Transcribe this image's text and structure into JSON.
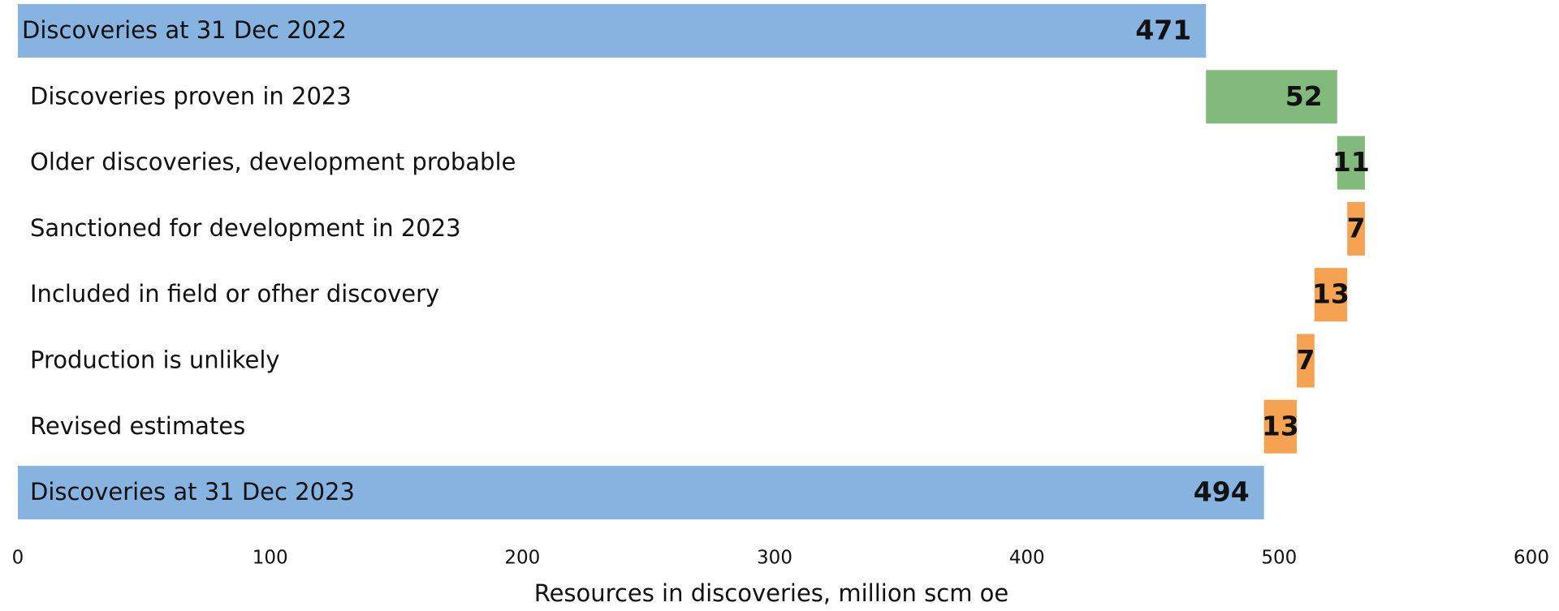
{
  "chart_data": {
    "type": "waterfall",
    "orientation": "horizontal",
    "x_axis_label": "Resources in discoveries, million scm oe",
    "categories": [
      "Discoveries at 31 Dec 2022",
      "Discoveries proven in 2023",
      "Older discoveries, development probable",
      "Sanctioned for development in 2023",
      "Included in field or ofher discovery",
      "Production is unlikely",
      "Revised estimates",
      "Discoveries at 31 Dec 2023"
    ],
    "values": [
      471,
      52,
      11,
      7,
      13,
      7,
      13,
      494
    ],
    "measure": [
      "total",
      "increase",
      "increase",
      "decrease",
      "decrease",
      "decrease",
      "decrease",
      "total"
    ],
    "colors": {
      "total": "#86b3e0",
      "increase": "#82b97c",
      "decrease": "#f5a352"
    },
    "xlim": [
      0,
      600
    ],
    "xticks": [
      0,
      100,
      200,
      300,
      400,
      500,
      600
    ],
    "grid": false
  }
}
